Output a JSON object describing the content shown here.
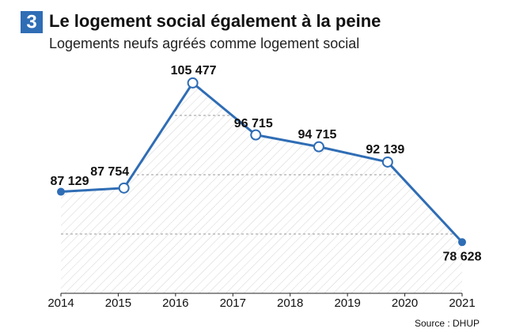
{
  "chart_data": {
    "type": "line",
    "number": "3",
    "title": "Le logement social également à la peine",
    "subtitle": "Logements neufs agréés comme logement social",
    "source": "Source : DHUP",
    "x": [
      2014,
      2015.1,
      2016.3,
      2017.4,
      2018.5,
      2019.7,
      2021
    ],
    "series": [
      {
        "name": "Logements neufs agréés",
        "color": "#2f6db5",
        "values": [
          87129,
          87754,
          105477,
          96715,
          94715,
          92139,
          78628
        ],
        "value_labels": [
          "87 129",
          "87 754",
          "105 477",
          "96 715",
          "94 715",
          "92 139",
          "78 628"
        ]
      }
    ],
    "xlim": [
      2014,
      2021
    ],
    "xticks": [
      2014,
      2015,
      2016,
      2017,
      2018,
      2019,
      2020,
      2021
    ],
    "ylim": [
      70000,
      110000
    ],
    "yticks": [
      80000,
      90000,
      100000
    ],
    "grid": true
  }
}
